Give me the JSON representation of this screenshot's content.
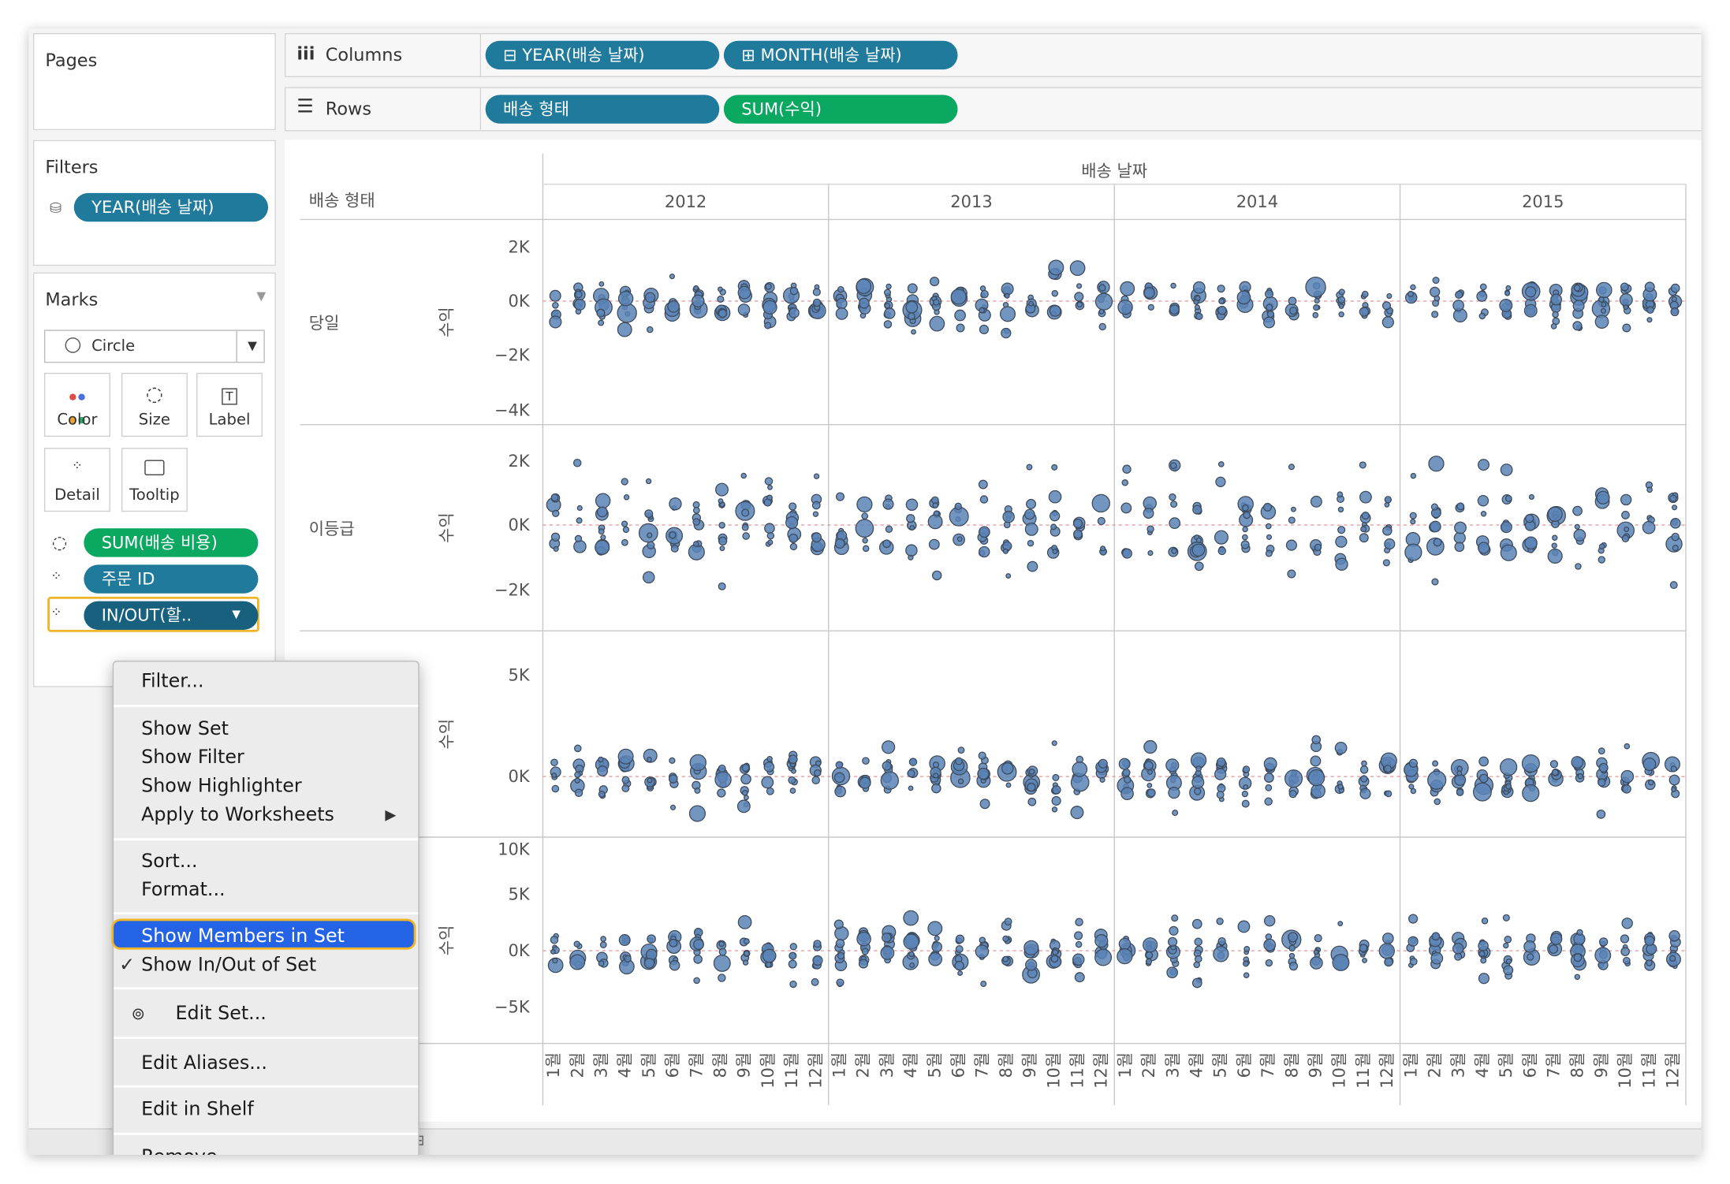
{
  "pages": {
    "title": "Pages"
  },
  "columns_shelf": {
    "label": "Columns",
    "pills": [
      "⊟ YEAR(배송 날짜)",
      "⊞ MONTH(배송 날짜)"
    ]
  },
  "rows_shelf": {
    "label": "Rows",
    "pills": [
      "배송 형태",
      "SUM(수익)"
    ]
  },
  "filters": {
    "title": "Filters",
    "pill": "YEAR(배송 날짜)"
  },
  "marks": {
    "title": "Marks",
    "mark_type": "Circle",
    "buttons": {
      "color": "Color",
      "size": "Size",
      "label": "Label",
      "detail": "Detail",
      "tooltip": "Tooltip"
    },
    "fields": [
      "SUM(배송 비용)",
      "주문 ID",
      "IN/OUT(할.."
    ]
  },
  "context_menu": {
    "items": {
      "filter": "Filter...",
      "show_set": "Show Set",
      "show_filter": "Show Filter",
      "show_highlighter": "Show Highlighter",
      "apply_to_worksheets": "Apply to Worksheets",
      "sort": "Sort...",
      "format": "Format...",
      "show_members": "Show Members in Set",
      "show_inout": "Show In/Out of Set",
      "edit_set": "Edit Set...",
      "edit_aliases": "Edit Aliases...",
      "edit_in_shelf": "Edit in Shelf",
      "remove": "Remove"
    },
    "checked": "Show In/Out of Set",
    "highlighted": "Show Members in Set"
  },
  "view": {
    "column_header": "배송 날짜",
    "row_header": "배송 형태",
    "years": [
      "2012",
      "2013",
      "2014",
      "2015"
    ],
    "months": [
      "1월",
      "2월",
      "3월",
      "4월",
      "5월",
      "6월",
      "7월",
      "8월",
      "9월",
      "10월",
      "11월",
      "12월"
    ],
    "measure_label": "수익",
    "rows": [
      {
        "name": "당일",
        "ticks": [
          "2K",
          "0K",
          "−2K",
          "−4K"
        ]
      },
      {
        "name": "이등급",
        "ticks": [
          "2K",
          "0K",
          "−2K"
        ]
      },
      {
        "name": "",
        "ticks": [
          "5K",
          "0K"
        ]
      },
      {
        "name": "",
        "ticks": [
          "10K",
          "5K",
          "0K",
          "−5K"
        ]
      }
    ],
    "mark_color": "#5b84b6"
  }
}
